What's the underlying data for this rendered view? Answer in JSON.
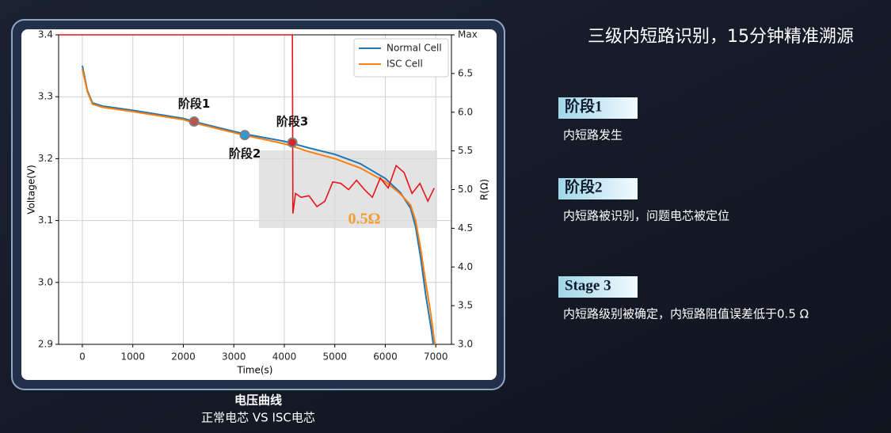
{
  "chart_data": {
    "type": "line",
    "xlabel": "Time(s)",
    "ylabel": "Voltage(V)",
    "y2label": "R(Ω)",
    "xlim": [
      -470,
      7310
    ],
    "xticks": [
      0,
      1000,
      2000,
      3000,
      4000,
      5000,
      6000,
      7000
    ],
    "ylim": [
      2.9,
      3.4
    ],
    "yticks": [
      2.9,
      {
        "value": 3,
        "label": "3.0"
      },
      3.1,
      3.2,
      3.3,
      3.4
    ],
    "y2lim": [
      3,
      7
    ],
    "y2ticks": [
      {
        "value": 3,
        "label": "3.0"
      },
      3.5,
      {
        "value": 4,
        "label": "4.0"
      },
      4.5,
      {
        "value": 5,
        "label": "5.0"
      },
      5.5,
      {
        "value": 6,
        "label": "6.0"
      },
      6.5,
      {
        "value": 7,
        "label": "Max"
      }
    ],
    "grid": true,
    "legend": "upper right",
    "series": [
      {
        "name": "Normal Cell",
        "color": "#1f77b4",
        "x": [
          0,
          100,
          200,
          400,
          1000,
          2000,
          2200,
          3200,
          4000,
          4500,
          5000,
          5500,
          6000,
          6300,
          6500,
          6600,
          6700,
          6800,
          6900,
          6950
        ],
        "values": [
          3.35,
          3.31,
          3.29,
          3.285,
          3.278,
          3.265,
          3.26,
          3.24,
          3.228,
          3.217,
          3.207,
          3.192,
          3.168,
          3.145,
          3.12,
          3.09,
          3.04,
          2.98,
          2.93,
          2.9
        ]
      },
      {
        "name": "ISC Cell",
        "color": "#ff7f0e",
        "x": [
          0,
          100,
          200,
          400,
          1000,
          2000,
          2200,
          3200,
          4000,
          4500,
          5000,
          5500,
          6000,
          6300,
          6500,
          6600,
          6700,
          6800,
          6900,
          6980
        ],
        "values": [
          3.345,
          3.308,
          3.288,
          3.283,
          3.276,
          3.263,
          3.258,
          3.238,
          3.224,
          3.211,
          3.2,
          3.185,
          3.163,
          3.143,
          3.125,
          3.1,
          3.055,
          3.0,
          2.95,
          2.9
        ]
      },
      {
        "color": "#e8141a",
        "axis": "y2",
        "x": [
          -470,
          4150,
          4160,
          4170,
          4222,
          4332,
          4489,
          4646,
          4803,
          4960,
          5117,
          5273,
          5430,
          5587,
          5744,
          5901,
          6058,
          6215,
          6372,
          6529,
          6686,
          6843,
          6969
        ],
        "values": [
          7,
          7,
          7,
          4.69,
          4.95,
          4.9,
          4.92,
          4.78,
          4.85,
          5.1,
          5.08,
          5,
          5.12,
          5,
          4.9,
          5.15,
          5.02,
          5.31,
          5.22,
          4.95,
          5.08,
          4.85,
          5.02
        ]
      }
    ],
    "annotations": [
      {
        "text": "阶段1",
        "x": 2213,
        "y": 3.26,
        "color": "#c0504d"
      },
      {
        "text": "阶段2",
        "x": 3217,
        "y": 3.238,
        "color": "#2e9bd6"
      },
      {
        "text": "阶段3",
        "x": 4159,
        "y": 3.226,
        "color": "#d9252a"
      }
    ],
    "highlight": {
      "label": "0.5Ω",
      "color": "#f39c33"
    }
  },
  "caption": {
    "title": "电压曲线",
    "subtitle": "正常电芯 VS ISC电芯"
  },
  "panel": {
    "title": "三级内短路识别，15分钟精准溯源",
    "stages": [
      {
        "badge": "阶段1",
        "text": "内短路发生"
      },
      {
        "badge": "阶段2",
        "text": "内短路被识别，问题电芯被定位"
      },
      {
        "badge": "Stage 3",
        "text": "内短路级别被确定，内短路阻值误差低于0.5 Ω"
      }
    ]
  }
}
